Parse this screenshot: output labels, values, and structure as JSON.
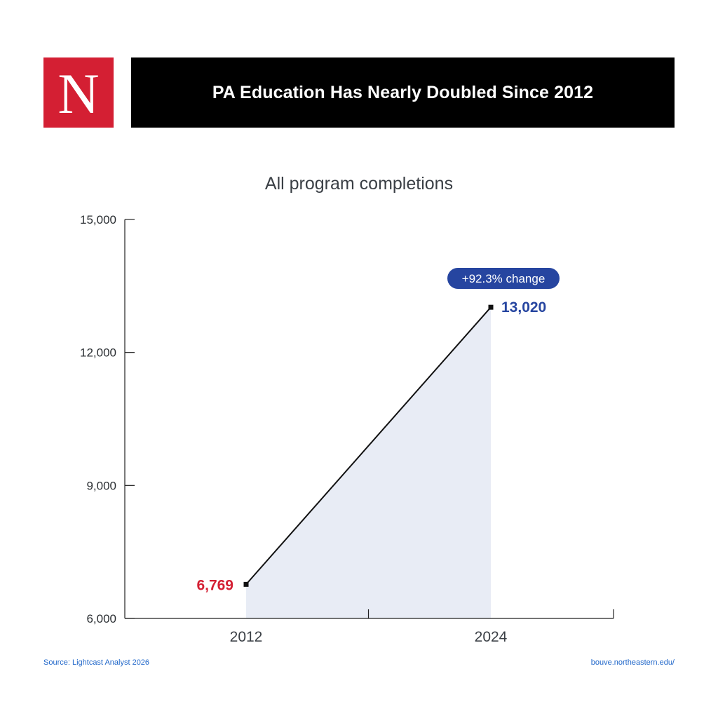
{
  "logo": {
    "letter": "N",
    "bg_color": "#d41f33"
  },
  "banner": {
    "title": "PA Education Has Nearly Doubled Since 2012"
  },
  "chart_data": {
    "type": "area",
    "title": "All program completions",
    "x": [
      "2012",
      "2024"
    ],
    "series": [
      {
        "values": [
          6769,
          13020
        ]
      }
    ],
    "ylim": [
      6000,
      15000
    ],
    "yticks": [
      6000,
      9000,
      12000,
      15000
    ],
    "ytick_labels": [
      "6,000",
      "9,000",
      "12,000",
      "15,000"
    ],
    "data_labels": [
      "6,769",
      "13,020"
    ],
    "data_label_colors": [
      "#d41f33",
      "#2645a0"
    ],
    "annotation": {
      "text": "+92.3% change",
      "color": "#2645a0"
    },
    "fill_color": "#e8ecf5",
    "line_color": "#111111",
    "grid": false
  },
  "footer": {
    "source": "Source: Lightcast Analyst 2026",
    "url": "bouve.northeastern.edu/"
  }
}
